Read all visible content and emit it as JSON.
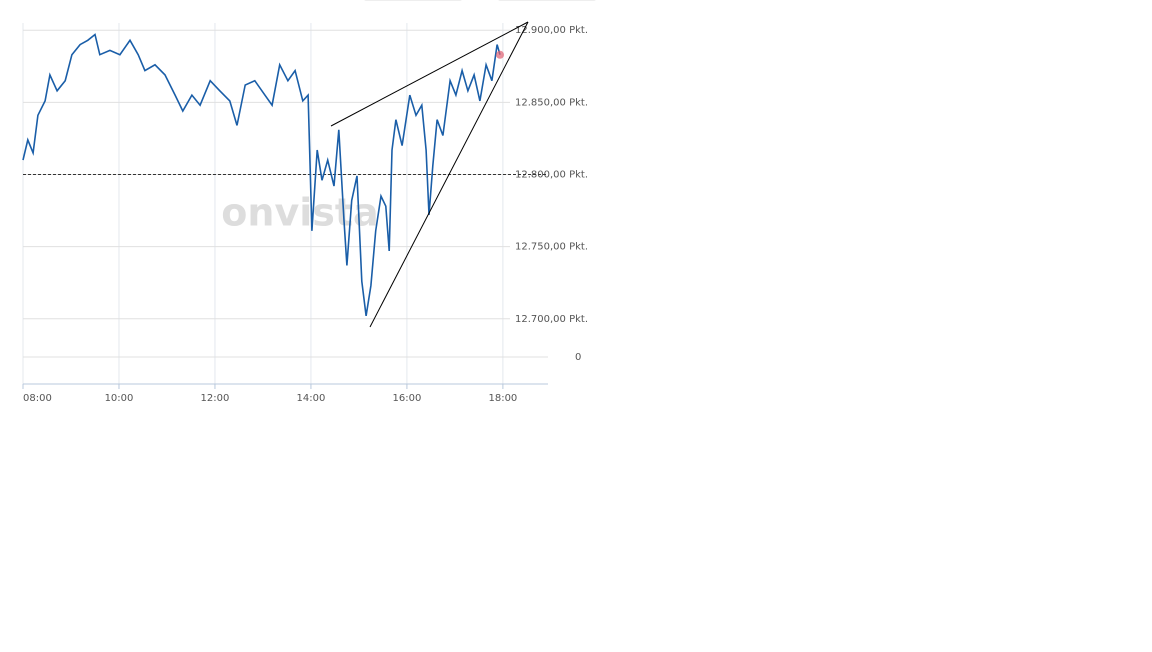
{
  "chart_data": {
    "type": "line",
    "watermark": "onvista",
    "x": [
      8.0,
      8.1,
      8.21,
      8.31,
      8.46,
      8.56,
      8.71,
      8.88,
      9.02,
      9.19,
      9.35,
      9.5,
      9.6,
      9.81,
      10.02,
      10.23,
      10.4,
      10.54,
      10.75,
      10.96,
      11.17,
      11.33,
      11.52,
      11.69,
      11.9,
      12.1,
      12.31,
      12.46,
      12.63,
      12.83,
      13.04,
      13.19,
      13.35,
      13.52,
      13.67,
      13.83,
      13.94,
      14.02,
      14.13,
      14.23,
      14.35,
      14.48,
      14.58,
      14.69,
      14.75,
      14.85,
      14.96,
      15.06,
      15.15,
      15.25,
      15.35,
      15.46,
      15.56,
      15.63,
      15.69,
      15.77,
      15.9,
      16.06,
      16.19,
      16.31,
      16.4,
      16.46,
      16.54,
      16.63,
      16.75,
      16.9,
      17.02,
      17.15,
      17.27,
      17.4,
      17.52,
      17.65,
      17.77,
      17.88,
      17.94
    ],
    "series": [
      {
        "color": "#1a5ea8",
        "values": [
          12810,
          12824,
          12815,
          12841,
          12851,
          12869,
          12858,
          12865,
          12883,
          12890,
          12893,
          12897,
          12883,
          12886,
          12883,
          12893,
          12883,
          12872,
          12876,
          12869,
          12855,
          12844,
          12855,
          12848,
          12865,
          12858,
          12851,
          12834,
          12862,
          12865,
          12855,
          12848,
          12876,
          12865,
          12872,
          12851,
          12855,
          12761,
          12817,
          12796,
          12810,
          12792,
          12831,
          12768,
          12737,
          12782,
          12799,
          12726,
          12702,
          12723,
          12761,
          12785,
          12778,
          12747,
          12817,
          12838,
          12820,
          12855,
          12841,
          12848,
          12817,
          12772,
          12806,
          12838,
          12827,
          12865,
          12855,
          12872,
          12858,
          12869,
          12851,
          12876,
          12865,
          12890,
          12883
        ]
      }
    ],
    "reference_line": 12800,
    "last_point_color": "#e06070",
    "xlim": [
      8,
      18.94
    ],
    "xticks": [
      {
        "value": 8,
        "label": "08:00"
      },
      {
        "value": 10,
        "label": "10:00"
      },
      {
        "value": 12,
        "label": "12:00"
      },
      {
        "value": 14,
        "label": "14:00"
      },
      {
        "value": 16,
        "label": "16:00"
      },
      {
        "value": 18,
        "label": "18:00"
      }
    ],
    "ylim": [
      12695,
      12905
    ],
    "yticks": [
      {
        "value": 12700,
        "label": "12.700,00 Pkt."
      },
      {
        "value": 12750,
        "label": "12.750,00 Pkt."
      },
      {
        "value": 12800,
        "label": "12.800,00 Pkt."
      },
      {
        "value": 12850,
        "label": "12.850,00 Pkt."
      },
      {
        "value": 12900,
        "label": "12.900,00 Pkt."
      }
    ],
    "volume_yticks": [
      0
    ],
    "grid": true
  }
}
